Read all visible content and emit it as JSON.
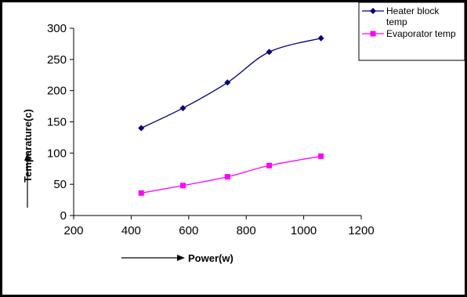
{
  "chart_data": {
    "type": "line",
    "title": "",
    "xlabel": "Power(w)",
    "ylabel": "Temparature(c)",
    "xlim": [
      200,
      1200
    ],
    "ylim": [
      0,
      300
    ],
    "x_ticks": [
      "200",
      "400",
      "600",
      "800",
      "1000",
      "1200"
    ],
    "y_ticks": [
      "0",
      "50",
      "100",
      "150",
      "200",
      "250",
      "300"
    ],
    "grid": false,
    "legend_position": "top-right",
    "series": [
      {
        "name": "Heater block temp",
        "legend_lines": [
          "Heater block",
          "temp"
        ],
        "color": "#00007f",
        "marker": "diamond",
        "x": [
          435,
          580,
          735,
          880,
          1060
        ],
        "y": [
          140,
          172,
          213,
          262,
          284
        ]
      },
      {
        "name": "Evaporator temp",
        "legend_lines": [
          "Evaporator temp"
        ],
        "color": "#ff00ff",
        "marker": "square",
        "x": [
          435,
          580,
          735,
          880,
          1060
        ],
        "y": [
          36,
          48,
          62,
          80,
          95
        ]
      }
    ]
  }
}
